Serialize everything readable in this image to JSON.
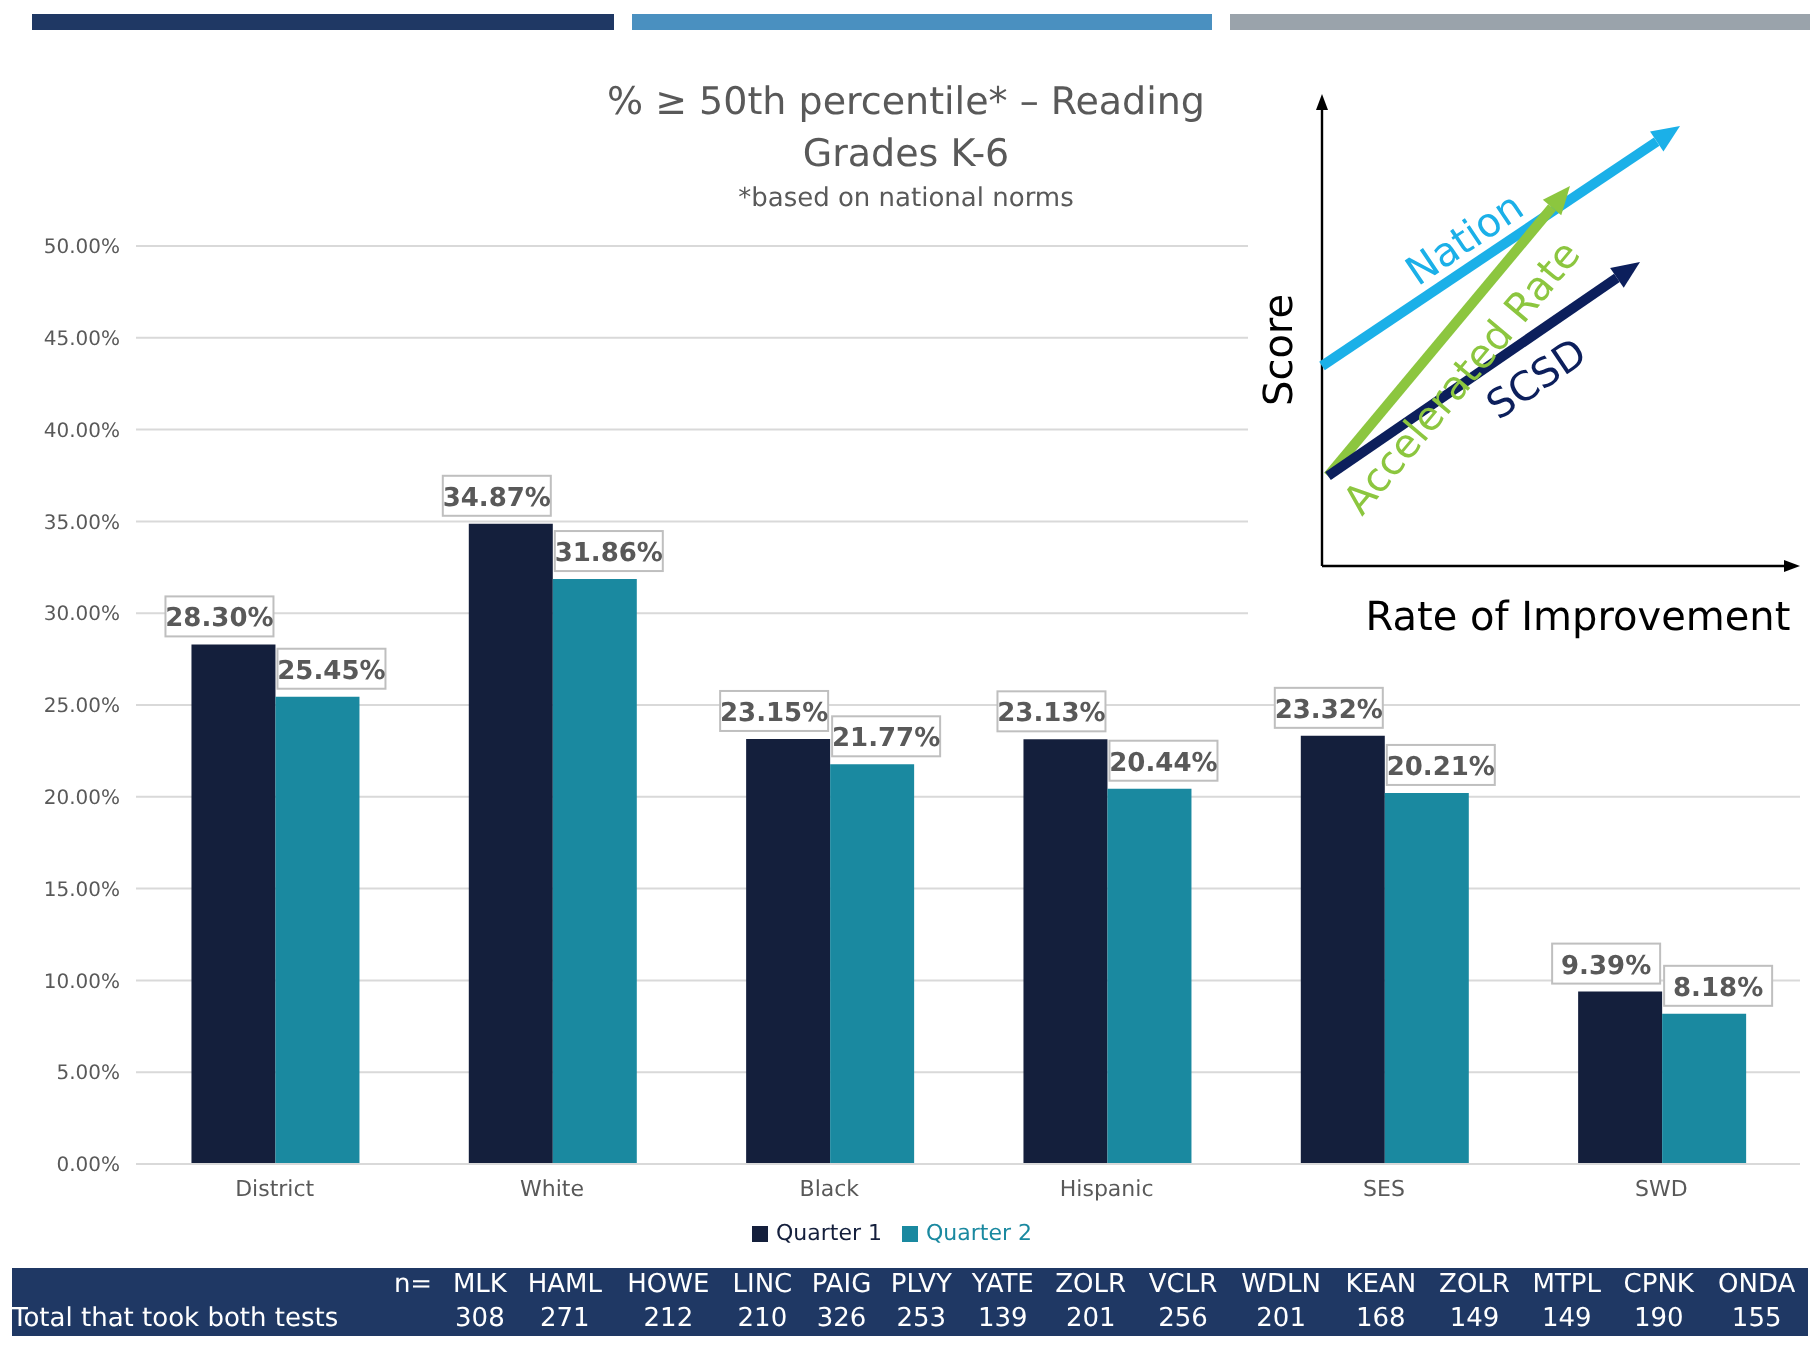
{
  "chart_data": [
    {
      "type": "bar",
      "title": "% ≥ 50th percentile* – Reading Grades K-6",
      "subtitle": "*based on national norms",
      "categories": [
        "District",
        "White",
        "Black",
        "Hispanic",
        "SES",
        "SWD"
      ],
      "series": [
        {
          "name": "Quarter 1",
          "color": "#141f3c",
          "values": [
            28.3,
            34.87,
            23.15,
            23.13,
            23.32,
            9.39
          ],
          "value_labels": [
            "28.30%",
            "34.87%",
            "23.15%",
            "23.13%",
            "23.32%",
            "9.39%"
          ]
        },
        {
          "name": "Quarter 2",
          "color": "#1a89a0",
          "values": [
            25.45,
            31.86,
            21.77,
            20.44,
            20.21,
            8.18
          ],
          "value_labels": [
            "25.45%",
            "31.86%",
            "21.77%",
            "20.44%",
            "20.21%",
            "8.18%"
          ]
        }
      ],
      "ylim": [
        0,
        50
      ],
      "yticks": [
        {
          "value": 0,
          "label": "0.00%"
        },
        {
          "value": 5,
          "label": "5.00%"
        },
        {
          "value": 10,
          "label": "10.00%"
        },
        {
          "value": 15,
          "label": "15.00%"
        },
        {
          "value": 20,
          "label": "20.00%"
        },
        {
          "value": 25,
          "label": "25.00%"
        },
        {
          "value": 30,
          "label": "30.00%"
        },
        {
          "value": 35,
          "label": "35.00%"
        },
        {
          "value": 40,
          "label": "40.00%"
        },
        {
          "value": 45,
          "label": "45.00%"
        },
        {
          "value": 50,
          "label": "50.00%"
        }
      ],
      "grid": "y",
      "legend": "bottom"
    },
    {
      "type": "other",
      "xlabel": "Rate of Improvement",
      "ylabel": "Score",
      "annotations": [
        "Nation",
        "Accelerated Rate",
        "SCSD"
      ]
    },
    {
      "type": "other",
      "categories": [
        "MLK",
        "HAML",
        "HOWE",
        "LINC",
        "PAIG",
        "PLVY",
        "YATE",
        "ZOLR",
        "VCLR",
        "WDLN",
        "KEAN",
        "ZOLR",
        "MTPL",
        "CPNK",
        "ONDA"
      ],
      "values": [
        308,
        271,
        212,
        210,
        326,
        253,
        139,
        201,
        256,
        201,
        168,
        149,
        149,
        190,
        155
      ],
      "data_labels": true,
      "annotations": [
        "n=",
        "Total that took both tests"
      ]
    }
  ]
}
